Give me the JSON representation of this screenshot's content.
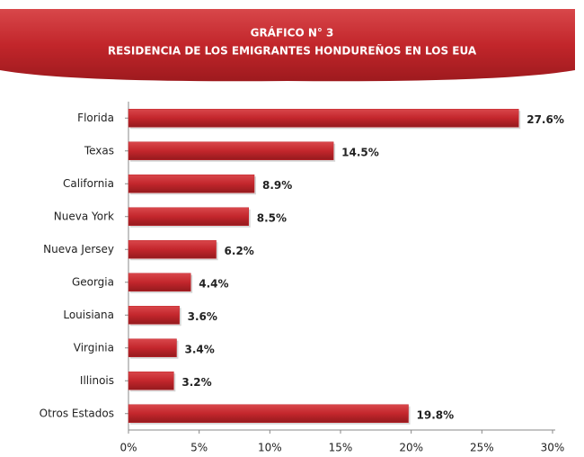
{
  "chart_data": {
    "type": "bar",
    "orientation": "horizontal",
    "title": "GRÁFICO N° 3",
    "subtitle": "RESIDENCIA DE LOS EMIGRANTES HONDUREÑOS EN LOS EUA",
    "categories": [
      "Florida",
      "Texas",
      "California",
      "Nueva York",
      "Nueva Jersey",
      "Georgia",
      "Louisiana",
      "Virginia",
      "Illinois",
      "Otros Estados"
    ],
    "values": [
      27.6,
      14.5,
      8.9,
      8.5,
      6.2,
      4.4,
      3.6,
      3.4,
      3.2,
      19.8
    ],
    "value_labels": [
      "27.6%",
      "14.5%",
      "8.9%",
      "8.5%",
      "6.2%",
      "4.4%",
      "3.6%",
      "3.4%",
      "3.2%",
      "19.8%"
    ],
    "color": "#c3262c",
    "xlim": [
      0,
      30
    ],
    "xticks": [
      {
        "value": 0,
        "label": "0%"
      },
      {
        "value": 5,
        "label": "5%"
      },
      {
        "value": 10,
        "label": "10%"
      },
      {
        "value": 15,
        "label": "15%"
      },
      {
        "value": 20,
        "label": "20%"
      },
      {
        "value": 25,
        "label": "25%"
      },
      {
        "value": 30,
        "label": "30%"
      }
    ],
    "grid": false
  }
}
